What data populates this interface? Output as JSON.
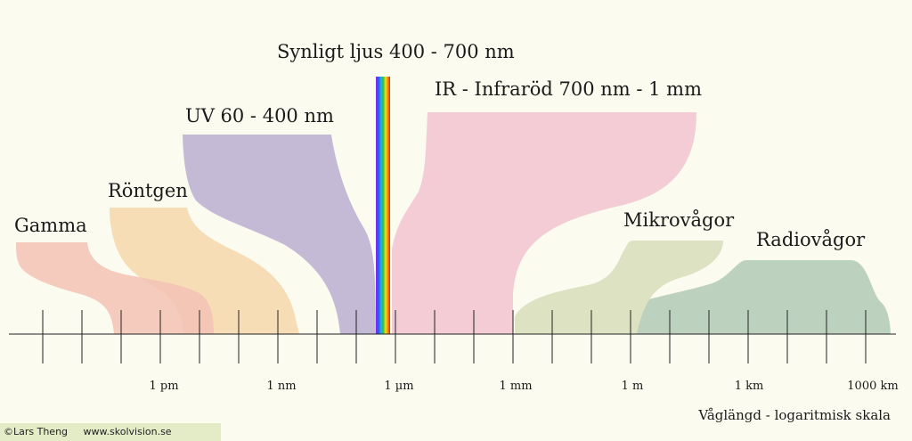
{
  "title": "Synligt ljus 400 - 700 nm",
  "regions": {
    "gamma": {
      "label": "Gamma",
      "color": "#f3c2b5"
    },
    "rontgen": {
      "label": "Röntgen",
      "color": "#f6ddb6"
    },
    "uv": {
      "label": "UV 60 - 400 nm",
      "color": "#c4bad6"
    },
    "ir": {
      "label": "IR - Infraröd 700 nm - 1 mm",
      "color": "#f3ccd6"
    },
    "mikro": {
      "label": "Mikrovågor",
      "color": "#dde2c2"
    },
    "radio": {
      "label": "Radiovågor",
      "color": "#bcd2bf"
    }
  },
  "axis": {
    "ticks": [
      "1 pm",
      "1 nm",
      "1 µm",
      "1 mm",
      "1 m",
      "1 km",
      "1000 km"
    ],
    "title": "Våglängd - logaritmisk skala"
  },
  "credit": {
    "author": "©Lars Theng",
    "site": "www.skolvision.se"
  }
}
